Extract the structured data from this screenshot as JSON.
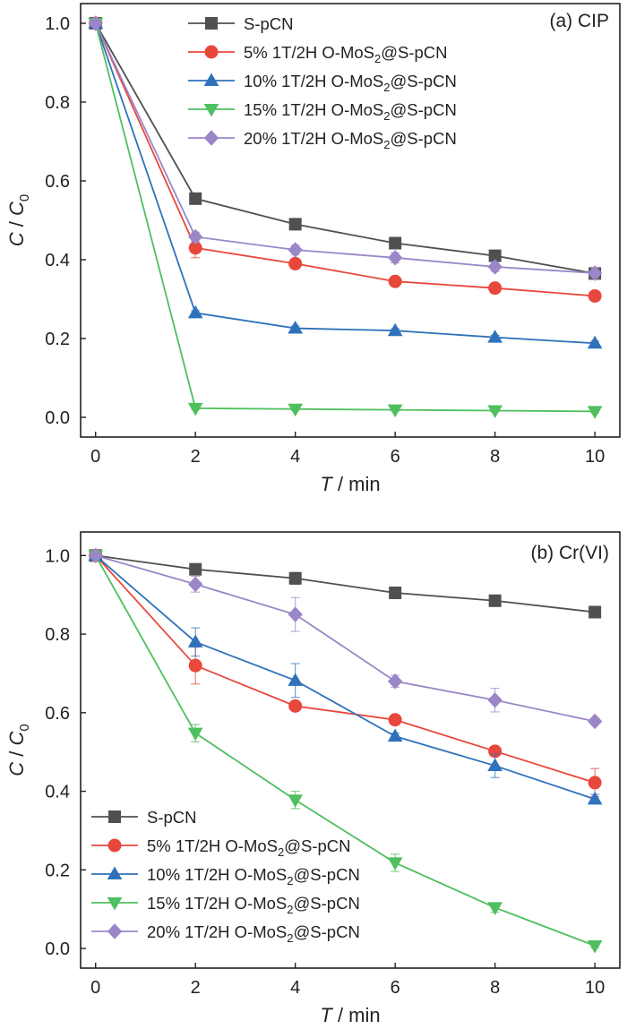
{
  "chart_data": [
    {
      "type": "line",
      "panel_label": "(a) CIP",
      "xlabel": {
        "italic": "T",
        "rest": " / min"
      },
      "ylabel": {
        "italic_c": "C",
        "sep": " / ",
        "italic_c0": "C",
        "sub": "0"
      },
      "xlim": [
        -0.3,
        10.5
      ],
      "ylim": [
        -0.05,
        1.05
      ],
      "xticks": [
        0,
        2,
        4,
        6,
        8,
        10
      ],
      "yticks": [
        0.0,
        0.2,
        0.4,
        0.6,
        0.8,
        1.0
      ],
      "x": [
        0,
        2,
        4,
        6,
        8,
        10
      ],
      "legend_position": "top-right",
      "series": [
        {
          "name": "S-pCN",
          "base": "S-pCN",
          "sub": "",
          "tail": "",
          "color": "#505050",
          "marker": "square",
          "values": [
            1.0,
            0.555,
            0.49,
            0.442,
            0.41,
            0.365
          ],
          "errors": [
            0,
            0.013,
            0.014,
            0.014,
            0.012,
            0.01
          ]
        },
        {
          "name": "5% 1T/2H O-MoS2@S-pCN",
          "base": "5% 1T/2H O-MoS",
          "sub": "2",
          "tail": "@S-pCN",
          "color": "#e8473b",
          "marker": "circle",
          "values": [
            1.0,
            0.43,
            0.39,
            0.345,
            0.328,
            0.308
          ],
          "errors": [
            0,
            0.025,
            0.01,
            0.005,
            0.005,
            0.005
          ]
        },
        {
          "name": "10% 1T/2H O-MoS2@S-pCN",
          "base": "10% 1T/2H O-MoS",
          "sub": "2",
          "tail": "@S-pCN",
          "color": "#2f72bb",
          "marker": "triangle-up",
          "values": [
            1.0,
            0.265,
            0.226,
            0.22,
            0.203,
            0.188
          ],
          "errors": [
            0,
            0.006,
            0.006,
            0.005,
            0.005,
            0.005
          ]
        },
        {
          "name": "15% 1T/2H O-MoS2@S-pCN",
          "base": "15% 1T/2H O-MoS",
          "sub": "2",
          "tail": "@S-pCN",
          "color": "#4fbf5f",
          "marker": "triangle-down",
          "values": [
            1.0,
            0.023,
            0.021,
            0.019,
            0.017,
            0.015
          ],
          "errors": [
            0,
            0.003,
            0.003,
            0.003,
            0.003,
            0.003
          ]
        },
        {
          "name": "20% 1T/2H O-MoS2@S-pCN",
          "base": "20% 1T/2H O-MoS",
          "sub": "2",
          "tail": "@S-pCN",
          "color": "#9b86c8",
          "marker": "diamond",
          "values": [
            1.0,
            0.458,
            0.425,
            0.405,
            0.382,
            0.366
          ],
          "errors": [
            0,
            0.012,
            0.012,
            0.013,
            0.012,
            0.012
          ]
        }
      ]
    },
    {
      "type": "line",
      "panel_label": "(b) Cr(VI)",
      "xlabel": {
        "italic": "T",
        "rest": " / min"
      },
      "ylabel": {
        "italic_c": "C",
        "sep": " / ",
        "italic_c0": "C",
        "sub": "0"
      },
      "xlim": [
        -0.3,
        10.5
      ],
      "ylim": [
        -0.05,
        1.06
      ],
      "xticks": [
        0,
        2,
        4,
        6,
        8,
        10
      ],
      "yticks": [
        0.0,
        0.2,
        0.4,
        0.6,
        0.8,
        1.0
      ],
      "x": [
        0,
        2,
        4,
        6,
        8,
        10
      ],
      "legend_position": "bottom-left",
      "series": [
        {
          "name": "S-pCN",
          "base": "S-pCN",
          "sub": "",
          "tail": "",
          "color": "#505050",
          "marker": "square",
          "values": [
            1.0,
            0.965,
            0.942,
            0.905,
            0.885,
            0.856
          ],
          "errors": [
            0,
            0.012,
            0.015,
            0.013,
            0.008,
            0.013
          ]
        },
        {
          "name": "5% 1T/2H O-MoS2@S-pCN",
          "base": "5% 1T/2H O-MoS",
          "sub": "2",
          "tail": "@S-pCN",
          "color": "#e8473b",
          "marker": "circle",
          "values": [
            1.0,
            0.72,
            0.617,
            0.582,
            0.502,
            0.422
          ],
          "errors": [
            0,
            0.047,
            0.008,
            0.01,
            0.008,
            0.036
          ]
        },
        {
          "name": "10% 1T/2H O-MoS2@S-pCN",
          "base": "10% 1T/2H O-MoS",
          "sub": "2",
          "tail": "@S-pCN",
          "color": "#2f72bb",
          "marker": "triangle-up",
          "values": [
            1.0,
            0.78,
            0.682,
            0.54,
            0.465,
            0.38
          ],
          "errors": [
            0,
            0.036,
            0.043,
            0.008,
            0.03,
            0.012
          ]
        },
        {
          "name": "15% 1T/2H O-MoS2@S-pCN",
          "base": "15% 1T/2H O-MoS",
          "sub": "2",
          "tail": "@S-pCN",
          "color": "#4fbf5f",
          "marker": "triangle-down",
          "values": [
            1.0,
            0.548,
            0.378,
            0.218,
            0.104,
            0.007
          ],
          "errors": [
            0,
            0.022,
            0.022,
            0.022,
            0.012,
            0.005
          ]
        },
        {
          "name": "20% 1T/2H O-MoS2@S-pCN",
          "base": "20% 1T/2H O-MoS",
          "sub": "2",
          "tail": "@S-pCN",
          "color": "#9b86c8",
          "marker": "diamond",
          "values": [
            1.0,
            0.927,
            0.85,
            0.68,
            0.632,
            0.578
          ],
          "errors": [
            0,
            0.02,
            0.043,
            0.015,
            0.03,
            0.008
          ]
        }
      ]
    }
  ]
}
